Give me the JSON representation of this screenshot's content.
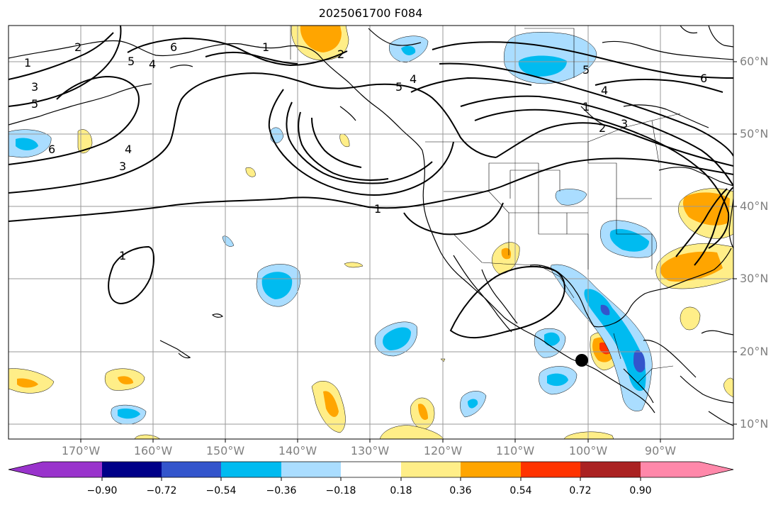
{
  "title": "2025061700 F084",
  "lat_labels": [
    "60°N",
    "50°N",
    "40°N",
    "30°N",
    "20°N",
    "10°N"
  ],
  "lon_labels": [
    "170°W",
    "160°W",
    "150°W",
    "140°W",
    "130°W",
    "120°W",
    "110°W",
    "100°W",
    "90°W"
  ],
  "colorbar": {
    "labels": [
      "−0.90",
      "−0.72",
      "−0.54",
      "−0.36",
      "−0.18",
      "0.18",
      "0.36",
      "0.54",
      "0.72",
      "0.90"
    ],
    "colors": [
      "#9933cc",
      "#000088",
      "#3355cc",
      "#00bbf0",
      "#aaddff",
      "#ffffff",
      "#ffee88",
      "#ffa500",
      "#ff3300",
      "#aa2222",
      "#ff88aa"
    ]
  },
  "contour_labels": [
    "1",
    "2",
    "3",
    "4",
    "5",
    "6"
  ],
  "colors": {
    "coast": "#000000",
    "contour": "#000000",
    "grid": "#9a9a9a",
    "axis_label": "#808080"
  },
  "marker": {
    "lon": -100.5,
    "lat": 18.8,
    "color": "#000000"
  }
}
